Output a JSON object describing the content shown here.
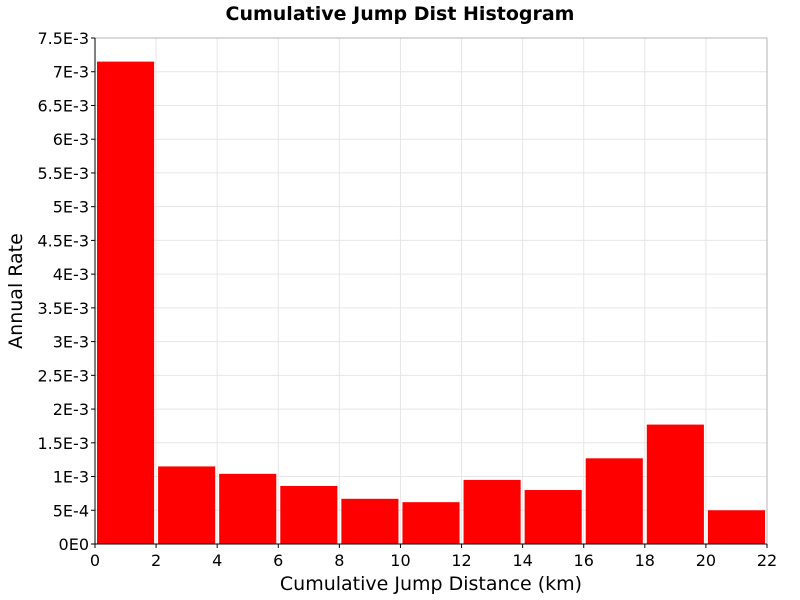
{
  "chart_data": {
    "type": "bar",
    "title": "Cumulative Jump Dist Histogram",
    "xlabel": "Cumulative Jump Distance (km)",
    "ylabel": "Annual Rate",
    "bin_width": 2,
    "bins": [
      {
        "x0": 0,
        "x1": 2,
        "value": 0.00715
      },
      {
        "x0": 2,
        "x1": 4,
        "value": 0.00115
      },
      {
        "x0": 4,
        "x1": 6,
        "value": 0.00104
      },
      {
        "x0": 6,
        "x1": 8,
        "value": 0.00086
      },
      {
        "x0": 8,
        "x1": 10,
        "value": 0.00067
      },
      {
        "x0": 10,
        "x1": 12,
        "value": 0.00062
      },
      {
        "x0": 12,
        "x1": 14,
        "value": 0.00095
      },
      {
        "x0": 14,
        "x1": 16,
        "value": 0.0008
      },
      {
        "x0": 16,
        "x1": 18,
        "value": 0.00127
      },
      {
        "x0": 18,
        "x1": 20,
        "value": 0.00177
      },
      {
        "x0": 20,
        "x1": 22,
        "value": 0.0005
      }
    ],
    "xlim": [
      0,
      22
    ],
    "ylim": [
      0,
      0.0075
    ],
    "x_ticks": [
      "0",
      "2",
      "4",
      "6",
      "8",
      "10",
      "12",
      "14",
      "16",
      "18",
      "20",
      "22"
    ],
    "y_ticks": [
      "0E0",
      "5E-4",
      "1E-3",
      "1.5E-3",
      "2E-3",
      "2.5E-3",
      "3E-3",
      "3.5E-3",
      "4E-3",
      "4.5E-3",
      "5E-3",
      "5.5E-3",
      "6E-3",
      "6.5E-3",
      "7E-3",
      "7.5E-3"
    ],
    "grid": true,
    "legend": "none",
    "colors": {
      "bar": "#ff0000",
      "grid": "#e6e6e6",
      "frame": "#b4b4b4"
    }
  }
}
